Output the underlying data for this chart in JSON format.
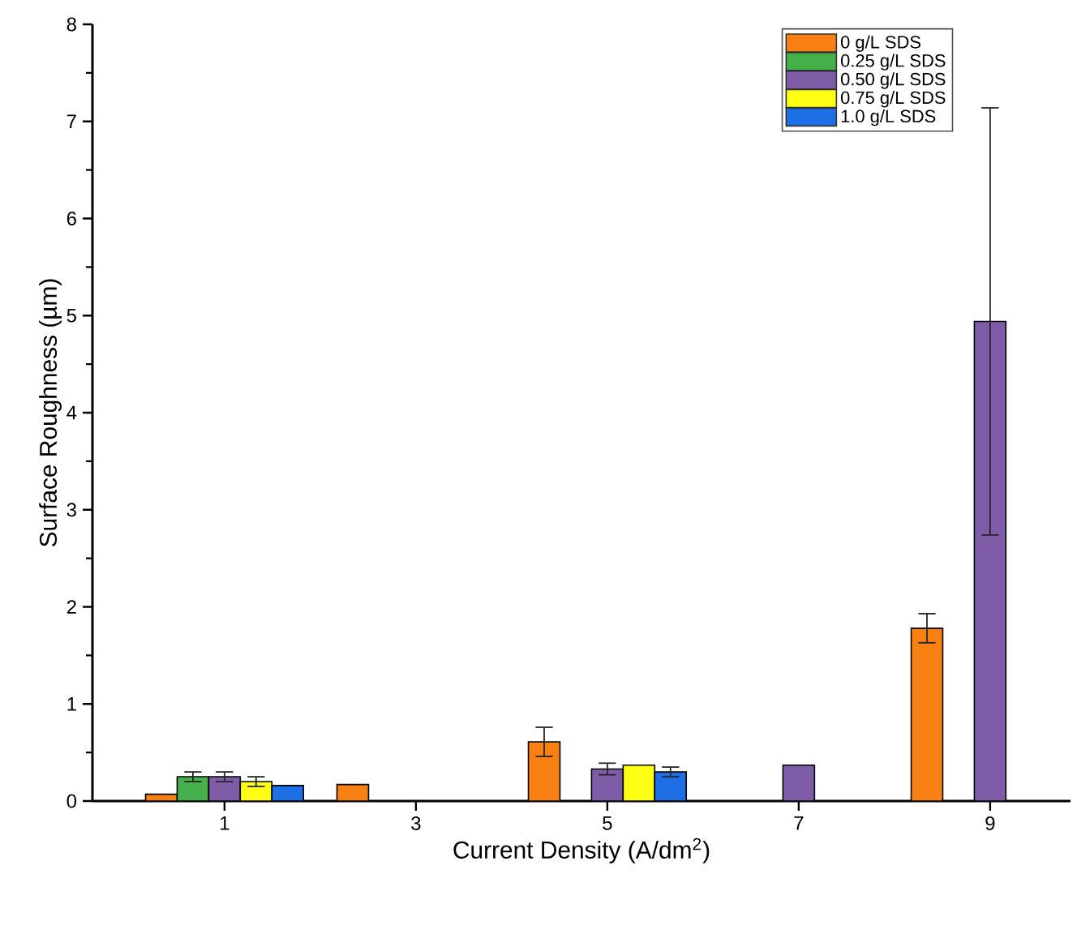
{
  "chart_data": {
    "type": "bar",
    "xlabel": "Current Density (A/dm$^{2}$)",
    "ylabel": "Surface Roughness (µm)",
    "categories": [
      "1",
      "3",
      "5",
      "7",
      "9"
    ],
    "series": [
      {
        "name": "0 g/L SDS",
        "color": "#f98012",
        "values": [
          0.07,
          0.17,
          0.61,
          null,
          1.78
        ],
        "errors": [
          null,
          null,
          0.15,
          null,
          0.15
        ]
      },
      {
        "name": "0.25 g/L SDS",
        "color": "#46b04a",
        "values": [
          0.25,
          null,
          null,
          null,
          null
        ],
        "errors": [
          0.05,
          null,
          null,
          null,
          null
        ]
      },
      {
        "name": "0.50 g/L SDS",
        "color": "#7f5ca8",
        "values": [
          0.25,
          null,
          0.33,
          0.37,
          4.94
        ],
        "errors": [
          0.05,
          null,
          0.06,
          null,
          2.2
        ]
      },
      {
        "name": "0.75 g/L SDS",
        "color": "#ffff14",
        "values": [
          0.2,
          null,
          0.37,
          null,
          null
        ],
        "errors": [
          0.05,
          null,
          null,
          null,
          null
        ]
      },
      {
        "name": "1.0 g/L SDS",
        "color": "#1e6ee6",
        "values": [
          0.16,
          null,
          0.3,
          null,
          null
        ],
        "errors": [
          null,
          null,
          0.05,
          null,
          null
        ]
      }
    ],
    "ylim": [
      0,
      8
    ],
    "yticks": [
      0,
      1,
      2,
      3,
      4,
      5,
      6,
      7,
      8
    ],
    "legend": "top right"
  }
}
